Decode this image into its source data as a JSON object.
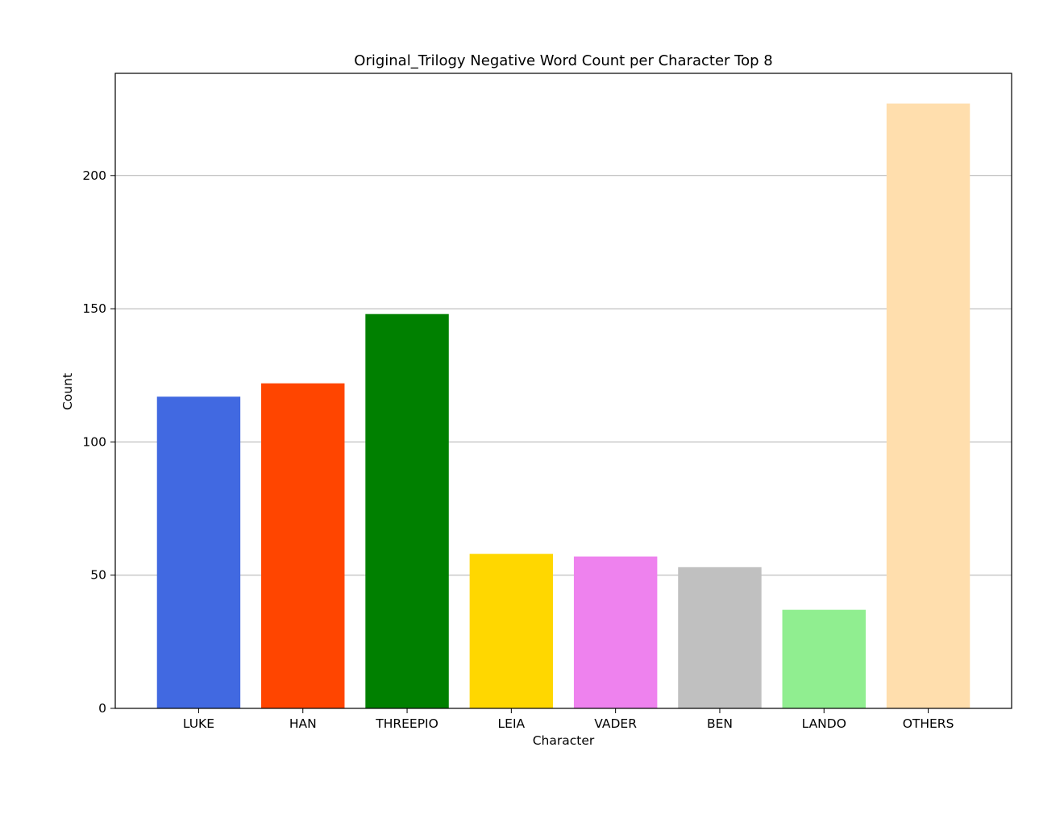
{
  "chart_data": {
    "type": "bar",
    "title": "Original_Trilogy Negative Word Count per Character Top 8",
    "xlabel": "Character",
    "ylabel": "Count",
    "categories": [
      "LUKE",
      "HAN",
      "THREEPIO",
      "LEIA",
      "VADER",
      "BEN",
      "LANDO",
      "OTHERS"
    ],
    "values": [
      117,
      122,
      148,
      58,
      57,
      53,
      37,
      227
    ],
    "colors": [
      "#4169e1",
      "#ff4500",
      "#008000",
      "#ffd700",
      "#ee82ee",
      "#c0c0c0",
      "#90ee90",
      "#ffdead"
    ],
    "ylim": [
      0,
      238.35
    ],
    "yticks": [
      0,
      50,
      100,
      150,
      200
    ],
    "grid": "y-major"
  }
}
